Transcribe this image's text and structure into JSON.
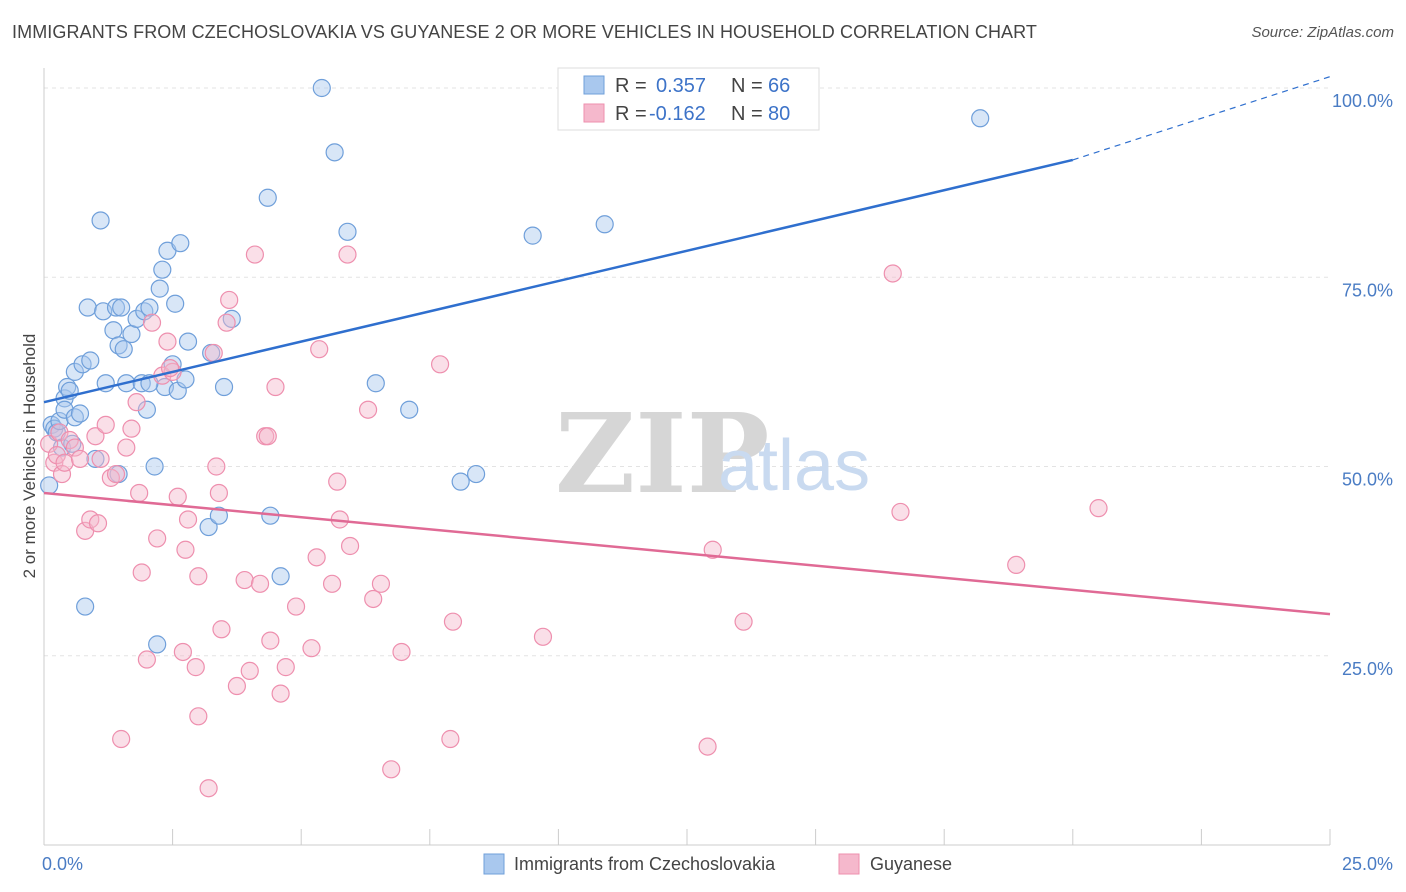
{
  "header": {
    "title": "IMMIGRANTS FROM CZECHOSLOVAKIA VS GUYANESE 2 OR MORE VEHICLES IN HOUSEHOLD CORRELATION CHART",
    "source": "Source: ZipAtlas.com"
  },
  "watermark": {
    "zip": "ZIP",
    "atlas": "atlas"
  },
  "colors": {
    "blue_fill": "#a9c8ee",
    "blue_stroke": "#6f9fda",
    "blue_line": "#2f6fce",
    "pink_fill": "#f5b8cc",
    "pink_stroke": "#ee8fae",
    "pink_line": "#e06a95",
    "grid": "#e3e3e3",
    "tick_text": "#4a7cc4"
  },
  "legend": {
    "rows": [
      {
        "r_label": "R =",
        "r_value": "0.357",
        "n_label": "N =",
        "n_value": "66"
      },
      {
        "r_label": "R =",
        "r_value": "-0.162",
        "n_label": "N =",
        "n_value": "80"
      }
    ]
  },
  "chart_data": {
    "type": "scatter",
    "title": "IMMIGRANTS FROM CZECHOSLOVAKIA VS GUYANESE 2 OR MORE VEHICLES IN HOUSEHOLD CORRELATION CHART",
    "xlabel": "",
    "ylabel": "2 or more Vehicles in Household",
    "xlim": [
      0,
      25
    ],
    "ylim": [
      0,
      100
    ],
    "x_tick_labels": [
      "0.0%",
      "25.0%"
    ],
    "y_ticks": [
      25,
      50,
      75,
      100
    ],
    "y_tick_labels": [
      "25.0%",
      "50.0%",
      "75.0%",
      "100.0%"
    ],
    "grid": true,
    "legend_position": "top-center",
    "series": [
      {
        "name": "Immigrants from Czechoslovakia",
        "color": "#a9c8ee",
        "r": 0.357,
        "n": 66,
        "trend": {
          "x": [
            0,
            20
          ],
          "y": [
            58.5,
            90.5
          ],
          "dashed_extension_to_x": 25,
          "dashed_end_y": 101.5
        },
        "points": [
          [
            0.1,
            47.5
          ],
          [
            0.15,
            55.5
          ],
          [
            0.2,
            55.0
          ],
          [
            0.25,
            54.5
          ],
          [
            0.3,
            56.0
          ],
          [
            0.35,
            52.5
          ],
          [
            0.4,
            59.0
          ],
          [
            0.4,
            57.5
          ],
          [
            0.45,
            60.5
          ],
          [
            0.5,
            60.0
          ],
          [
            0.55,
            53.0
          ],
          [
            0.6,
            62.5
          ],
          [
            0.6,
            56.5
          ],
          [
            0.7,
            57.0
          ],
          [
            0.75,
            63.5
          ],
          [
            0.8,
            31.5
          ],
          [
            0.85,
            71.0
          ],
          [
            0.9,
            64.0
          ],
          [
            1.0,
            51.0
          ],
          [
            1.1,
            82.5
          ],
          [
            1.15,
            70.5
          ],
          [
            1.2,
            61.0
          ],
          [
            1.35,
            68.0
          ],
          [
            1.4,
            71.0
          ],
          [
            1.45,
            66.0
          ],
          [
            1.5,
            71.0
          ],
          [
            1.55,
            65.5
          ],
          [
            1.6,
            61.0
          ],
          [
            1.7,
            67.5
          ],
          [
            1.8,
            69.5
          ],
          [
            1.9,
            61.0
          ],
          [
            2.0,
            57.5
          ],
          [
            1.95,
            70.5
          ],
          [
            2.05,
            71.0
          ],
          [
            2.15,
            50.0
          ],
          [
            2.2,
            26.5
          ],
          [
            2.25,
            73.5
          ],
          [
            2.3,
            76.0
          ],
          [
            2.35,
            60.5
          ],
          [
            2.4,
            78.5
          ],
          [
            2.5,
            63.5
          ],
          [
            2.55,
            71.5
          ],
          [
            2.6,
            60.0
          ],
          [
            2.65,
            79.5
          ],
          [
            2.75,
            61.5
          ],
          [
            2.8,
            66.5
          ],
          [
            3.2,
            42.0
          ],
          [
            3.25,
            65.0
          ],
          [
            3.4,
            43.5
          ],
          [
            3.5,
            60.5
          ],
          [
            3.65,
            69.5
          ],
          [
            4.35,
            85.5
          ],
          [
            4.4,
            43.5
          ],
          [
            4.6,
            35.5
          ],
          [
            5.4,
            100.0
          ],
          [
            5.65,
            91.5
          ],
          [
            5.9,
            81.0
          ],
          [
            6.45,
            61.0
          ],
          [
            7.1,
            57.5
          ],
          [
            8.1,
            48.0
          ],
          [
            8.4,
            49.0
          ],
          [
            9.5,
            80.5
          ],
          [
            10.9,
            82.0
          ],
          [
            18.2,
            96.0
          ],
          [
            1.45,
            49.0
          ],
          [
            2.05,
            61.0
          ]
        ]
      },
      {
        "name": "Guyanese",
        "color": "#f5b8cc",
        "r": -0.162,
        "n": 80,
        "trend": {
          "x": [
            0,
            25
          ],
          "y": [
            46.5,
            30.5
          ]
        },
        "points": [
          [
            0.1,
            53.0
          ],
          [
            0.2,
            50.5
          ],
          [
            0.25,
            51.5
          ],
          [
            0.3,
            54.5
          ],
          [
            0.35,
            49.0
          ],
          [
            0.4,
            50.5
          ],
          [
            0.5,
            53.5
          ],
          [
            0.6,
            52.5
          ],
          [
            0.7,
            51.0
          ],
          [
            0.8,
            41.5
          ],
          [
            0.9,
            43.0
          ],
          [
            1.0,
            54.0
          ],
          [
            1.05,
            42.5
          ],
          [
            1.1,
            51.0
          ],
          [
            1.2,
            55.5
          ],
          [
            1.3,
            48.5
          ],
          [
            1.4,
            49.0
          ],
          [
            1.5,
            14.0
          ],
          [
            1.6,
            52.5
          ],
          [
            1.7,
            55.0
          ],
          [
            1.8,
            58.5
          ],
          [
            1.85,
            46.5
          ],
          [
            1.9,
            36.0
          ],
          [
            2.0,
            24.5
          ],
          [
            2.1,
            69.0
          ],
          [
            2.2,
            40.5
          ],
          [
            2.3,
            62.0
          ],
          [
            2.4,
            66.5
          ],
          [
            2.5,
            62.5
          ],
          [
            2.6,
            46.0
          ],
          [
            2.7,
            25.5
          ],
          [
            2.75,
            39.0
          ],
          [
            2.8,
            43.0
          ],
          [
            2.95,
            23.5
          ],
          [
            3.0,
            17.0
          ],
          [
            3.2,
            7.5
          ],
          [
            3.3,
            65.0
          ],
          [
            3.35,
            50.0
          ],
          [
            3.4,
            46.5
          ],
          [
            3.45,
            28.5
          ],
          [
            3.55,
            69.0
          ],
          [
            3.6,
            72.0
          ],
          [
            3.75,
            21.0
          ],
          [
            3.9,
            35.0
          ],
          [
            4.0,
            23.0
          ],
          [
            4.1,
            78.0
          ],
          [
            4.2,
            34.5
          ],
          [
            4.3,
            54.0
          ],
          [
            4.35,
            54.0
          ],
          [
            4.4,
            27.0
          ],
          [
            4.5,
            60.5
          ],
          [
            4.6,
            20.0
          ],
          [
            4.7,
            23.5
          ],
          [
            4.9,
            31.5
          ],
          [
            5.2,
            26.0
          ],
          [
            5.3,
            38.0
          ],
          [
            5.35,
            65.5
          ],
          [
            5.6,
            34.5
          ],
          [
            5.7,
            48.0
          ],
          [
            5.75,
            43.0
          ],
          [
            5.9,
            78.0
          ],
          [
            5.95,
            39.5
          ],
          [
            6.3,
            57.5
          ],
          [
            6.4,
            32.5
          ],
          [
            6.55,
            34.5
          ],
          [
            6.75,
            10.0
          ],
          [
            6.95,
            25.5
          ],
          [
            7.7,
            63.5
          ],
          [
            7.9,
            14.0
          ],
          [
            7.95,
            29.5
          ],
          [
            9.7,
            27.5
          ],
          [
            12.9,
            13.0
          ],
          [
            13.0,
            39.0
          ],
          [
            13.6,
            29.5
          ],
          [
            16.5,
            75.5
          ],
          [
            16.65,
            44.0
          ],
          [
            18.9,
            37.0
          ],
          [
            20.5,
            44.5
          ],
          [
            2.45,
            63.0
          ],
          [
            3.0,
            35.5
          ]
        ]
      }
    ]
  }
}
